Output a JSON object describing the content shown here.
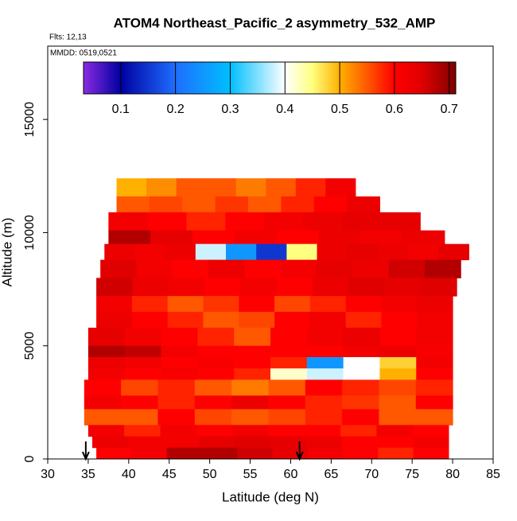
{
  "chart_data": {
    "type": "heatmap",
    "title": "ATOM4 Northeast_Pacific_2 asymmetry_532_AMP",
    "subtitle": "Flts: 12,13",
    "annotation": "MMDD: 0519,0521",
    "xlabel": "Latitude (deg N)",
    "ylabel": "Altitude (m)",
    "xlim": [
      30,
      85
    ],
    "xticks": [
      30,
      35,
      40,
      45,
      50,
      55,
      60,
      65,
      70,
      75,
      80,
      85
    ],
    "ylim": [
      0,
      18240
    ],
    "yticks": [
      0,
      5000,
      10000,
      15000
    ],
    "arrows": [
      34.7,
      61.1
    ],
    "colorbar": {
      "lim": [
        0.032,
        0.712
      ],
      "ticks": [
        0.1,
        0.2,
        0.3,
        0.4,
        0.5,
        0.6,
        0.7
      ],
      "stops": [
        {
          "value": 0.032,
          "color": "#8a2be2"
        },
        {
          "value": 0.1,
          "color": "#0000a0"
        },
        {
          "value": 0.2,
          "color": "#1e6eff"
        },
        {
          "value": 0.3,
          "color": "#00bfff"
        },
        {
          "value": 0.4,
          "color": "#ffffff"
        },
        {
          "value": 0.45,
          "color": "#ffff80"
        },
        {
          "value": 0.5,
          "color": "#ffb000"
        },
        {
          "value": 0.6,
          "color": "#ff0000"
        },
        {
          "value": 0.65,
          "color": "#e00000"
        },
        {
          "value": 0.712,
          "color": "#800000"
        }
      ]
    },
    "rows": [
      {
        "alt": [
          11600,
          12400
        ],
        "lat": [
          38.5,
          68
        ],
        "values": [
          0.5,
          0.52,
          0.55,
          0.55,
          0.53,
          0.55,
          0.58,
          0.62
        ]
      },
      {
        "alt": [
          10900,
          11600
        ],
        "lat": [
          38.5,
          71
        ],
        "values": [
          0.55,
          0.56,
          0.55,
          0.57,
          0.55,
          0.58,
          0.6,
          0.63
        ]
      },
      {
        "alt": [
          10100,
          10900
        ],
        "lat": [
          37.5,
          76
        ],
        "values": [
          0.62,
          0.6,
          0.58,
          0.6,
          0.62,
          0.63,
          0.64,
          0.64
        ]
      },
      {
        "alt": [
          9500,
          10100
        ],
        "lat": [
          37.5,
          79
        ],
        "values": [
          0.68,
          0.64,
          0.6,
          0.62,
          0.6,
          0.63,
          0.62,
          0.63
        ]
      },
      {
        "alt": [
          8800,
          9500
        ],
        "lat": [
          37,
          82
        ],
        "values": [
          0.63,
          0.62,
          0.63,
          0.38,
          0.25,
          0.15,
          0.45,
          0.63,
          0.64,
          0.63,
          0.62,
          0.64
        ]
      },
      {
        "alt": [
          8000,
          8800
        ],
        "lat": [
          36.5,
          81
        ],
        "values": [
          0.65,
          0.62,
          0.6,
          0.63,
          0.6,
          0.62,
          0.64,
          0.63,
          0.66,
          0.68
        ]
      },
      {
        "alt": [
          7200,
          8000
        ],
        "lat": [
          36,
          80.5
        ],
        "values": [
          0.66,
          0.63,
          0.62,
          0.6,
          0.62,
          0.6,
          0.63,
          0.65,
          0.64,
          0.65
        ]
      },
      {
        "alt": [
          6500,
          7200
        ],
        "lat": [
          36,
          80
        ],
        "values": [
          0.62,
          0.58,
          0.55,
          0.57,
          0.6,
          0.56,
          0.58,
          0.6,
          0.62,
          0.63
        ]
      },
      {
        "alt": [
          5800,
          6500
        ],
        "lat": [
          36,
          80
        ],
        "values": [
          0.63,
          0.6,
          0.58,
          0.55,
          0.56,
          0.6,
          0.62,
          0.58,
          0.6,
          0.62
        ]
      },
      {
        "alt": [
          5000,
          5800
        ],
        "lat": [
          35,
          80
        ],
        "values": [
          0.64,
          0.62,
          0.6,
          0.58,
          0.55,
          0.6,
          0.62,
          0.63,
          0.6,
          0.62
        ]
      },
      {
        "alt": [
          4500,
          5000
        ],
        "lat": [
          35,
          80
        ],
        "values": [
          0.68,
          0.67,
          0.62,
          0.6,
          0.6,
          0.6,
          0.6,
          0.62,
          0.63,
          0.61
        ]
      },
      {
        "alt": [
          4000,
          4500
        ],
        "lat": [
          35,
          80
        ],
        "values": [
          0.63,
          0.62,
          0.6,
          0.61,
          0.6,
          0.58,
          0.25,
          0.4,
          0.48,
          0.62
        ]
      },
      {
        "alt": [
          3500,
          4000
        ],
        "lat": [
          35,
          80
        ],
        "values": [
          0.62,
          0.6,
          0.61,
          0.6,
          0.58,
          0.42,
          0.38,
          0.4,
          0.5,
          0.6
        ]
      },
      {
        "alt": [
          2800,
          3500
        ],
        "lat": [
          34.5,
          80
        ],
        "values": [
          0.6,
          0.56,
          0.58,
          0.55,
          0.53,
          0.55,
          0.6,
          0.58,
          0.56,
          0.58
        ]
      },
      {
        "alt": [
          2200,
          2800
        ],
        "lat": [
          34.5,
          80
        ],
        "values": [
          0.62,
          0.6,
          0.58,
          0.6,
          0.63,
          0.6,
          0.58,
          0.57,
          0.55,
          0.6
        ]
      },
      {
        "alt": [
          1500,
          2200
        ],
        "lat": [
          34.5,
          80
        ],
        "values": [
          0.55,
          0.55,
          0.6,
          0.56,
          0.55,
          0.56,
          0.58,
          0.6,
          0.55,
          0.55
        ]
      },
      {
        "alt": [
          1000,
          1500
        ],
        "lat": [
          35,
          79.5
        ],
        "values": [
          0.62,
          0.58,
          0.62,
          0.6,
          0.62,
          0.6,
          0.6,
          0.58,
          0.62,
          0.6
        ]
      },
      {
        "alt": [
          500,
          1000
        ],
        "lat": [
          35.5,
          79.5
        ],
        "values": [
          0.63,
          0.62,
          0.62,
          0.64,
          0.65,
          0.64,
          0.63,
          0.6,
          0.6,
          0.62
        ]
      },
      {
        "alt": [
          0,
          500
        ],
        "lat": [
          36,
          79.5
        ],
        "values": [
          0.6,
          0.62,
          0.68,
          0.68,
          0.66,
          0.64,
          0.62,
          0.6,
          0.58,
          0.6
        ]
      }
    ]
  }
}
